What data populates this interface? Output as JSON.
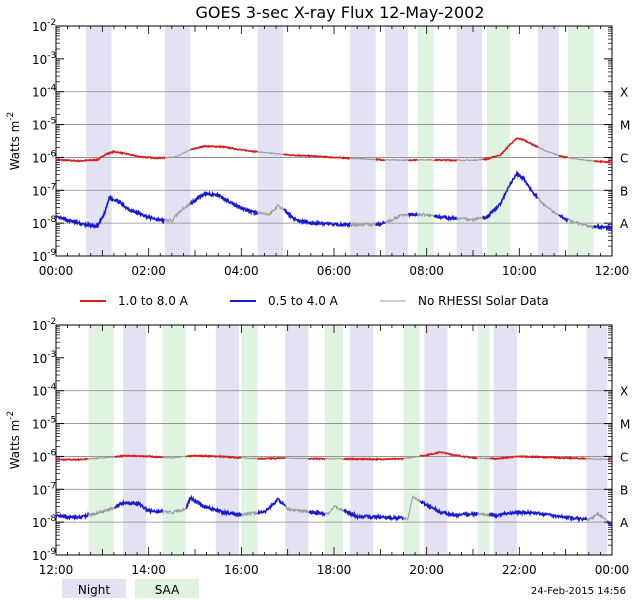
{
  "title": "GOES 3-sec X-ray Flux   12-May-2002",
  "timestamp": "24-Feb-2015 14:56",
  "legend": [
    {
      "label": "1.0 to 8.0 A",
      "color": "#d42020"
    },
    {
      "label": "0.5 to 4.0 A",
      "color": "#1a1acc"
    },
    {
      "label": "No RHESSI Solar Data",
      "color": "#999999"
    }
  ],
  "key": [
    {
      "label": "Night",
      "color": "#e2e2f2"
    },
    {
      "label": "SAA",
      "color": "#e0f2e0"
    }
  ],
  "colors": {
    "night": "#e2e2f2",
    "saa": "#e0f2e0",
    "long": "#d42020",
    "short": "#1a1acc",
    "gap": "#999999"
  },
  "chart_data": [
    {
      "type": "line",
      "title": "GOES 3-sec X-ray Flux   12-May-2002",
      "ylabel": "Watts m",
      "ylabel_sup": "-2",
      "y_scale": "log",
      "ylim_exp": [
        -9,
        -2
      ],
      "y_ticks": [
        {
          "base": "10",
          "exp": "-9"
        },
        {
          "base": "10",
          "exp": "-8"
        },
        {
          "base": "10",
          "exp": "-7"
        },
        {
          "base": "10",
          "exp": "-6"
        },
        {
          "base": "10",
          "exp": "-5"
        },
        {
          "base": "10",
          "exp": "-4"
        },
        {
          "base": "10",
          "exp": "-3"
        },
        {
          "base": "10",
          "exp": "-2"
        }
      ],
      "class_labels": [
        {
          "label": "A",
          "exp": -8
        },
        {
          "label": "B",
          "exp": -7
        },
        {
          "label": "C",
          "exp": -6
        },
        {
          "label": "M",
          "exp": -5
        },
        {
          "label": "X",
          "exp": -4
        }
      ],
      "x_unit": "hours UT",
      "xlim": [
        0,
        12
      ],
      "x_ticks": [
        {
          "label": "00:00",
          "x": 0
        },
        {
          "label": "02:00",
          "x": 2
        },
        {
          "label": "04:00",
          "x": 4
        },
        {
          "label": "06:00",
          "x": 6
        },
        {
          "label": "08:00",
          "x": 8
        },
        {
          "label": "10:00",
          "x": 10
        },
        {
          "label": "12:00",
          "x": 12
        }
      ],
      "night_bands": [
        [
          0.65,
          1.2
        ],
        [
          2.35,
          2.9
        ],
        [
          4.35,
          4.9
        ],
        [
          6.35,
          6.9
        ],
        [
          7.1,
          7.6
        ],
        [
          8.65,
          9.2
        ],
        [
          10.4,
          10.85
        ]
      ],
      "saa_bands": [
        [
          7.8,
          8.15
        ],
        [
          9.3,
          9.8
        ],
        [
          11.05,
          11.6
        ]
      ],
      "series": [
        {
          "name": "1.0 to 8.0 A",
          "role": "long",
          "x": [
            0,
            0.5,
            0.9,
            1.05,
            1.25,
            1.5,
            1.8,
            2.2,
            2.6,
            2.9,
            3.2,
            3.6,
            4.0,
            4.5,
            5.0,
            5.5,
            6.0,
            6.5,
            7.0,
            7.5,
            8.0,
            8.5,
            9.0,
            9.3,
            9.6,
            9.8,
            9.95,
            10.1,
            10.3,
            10.6,
            11.0,
            11.5,
            12.0
          ],
          "y": [
            8.5e-07,
            7.8e-07,
            8.5e-07,
            1.2e-06,
            1.5e-06,
            1.3e-06,
            1.05e-06,
            9.5e-07,
            1.05e-06,
            1.7e-06,
            2.2e-06,
            2.1e-06,
            1.7e-06,
            1.4e-06,
            1.2e-06,
            1.1e-06,
            1e-06,
            9.2e-07,
            8.5e-07,
            8.2e-07,
            8.5e-07,
            8.2e-07,
            8.2e-07,
            9e-07,
            1.2e-06,
            2.5e-06,
            3.8e-06,
            3.4e-06,
            2.4e-06,
            1.5e-06,
            1e-06,
            8e-07,
            7e-07
          ]
        },
        {
          "name": "0.5 to 4.0 A",
          "role": "short",
          "x": [
            0,
            0.3,
            0.6,
            0.9,
            1.05,
            1.15,
            1.3,
            1.6,
            2.0,
            2.3,
            2.5,
            2.7,
            2.85,
            3.0,
            3.2,
            3.5,
            3.8,
            4.2,
            4.6,
            4.8,
            5.0,
            5.2,
            5.5,
            5.8,
            6.0,
            6.5,
            7.0,
            7.5,
            8.0,
            8.5,
            9.0,
            9.3,
            9.6,
            9.8,
            9.95,
            10.1,
            10.3,
            10.6,
            11.0,
            11.5,
            12.0
          ],
          "y": [
            1.5e-08,
            1.2e-08,
            9e-09,
            8e-09,
            2e-08,
            6e-08,
            5e-08,
            2.5e-08,
            1.5e-08,
            1.2e-08,
            1.2e-08,
            2.5e-08,
            3.5e-08,
            5e-08,
            8e-08,
            7e-08,
            4e-08,
            2.2e-08,
            1.8e-08,
            3.5e-08,
            2e-08,
            1.2e-08,
            1e-08,
            1e-08,
            9e-09,
            9e-09,
            9e-09,
            1.8e-08,
            1.8e-08,
            1.4e-08,
            1.3e-08,
            1.5e-08,
            4e-08,
            1.5e-07,
            3.2e-07,
            2.2e-07,
            8e-08,
            3e-08,
            1.3e-08,
            8e-09,
            7e-09
          ]
        }
      ],
      "gaps": [
        [
          2.35,
          2.9
        ],
        [
          4.35,
          4.9
        ],
        [
          6.35,
          6.9
        ],
        [
          7.1,
          7.6
        ],
        [
          7.8,
          8.15
        ],
        [
          8.65,
          9.2
        ],
        [
          10.4,
          10.85
        ],
        [
          11.05,
          11.6
        ]
      ]
    },
    {
      "type": "line",
      "ylabel": "Watts m",
      "ylabel_sup": "-2",
      "y_scale": "log",
      "ylim_exp": [
        -9,
        -2
      ],
      "y_ticks": [
        {
          "base": "10",
          "exp": "-9"
        },
        {
          "base": "10",
          "exp": "-8"
        },
        {
          "base": "10",
          "exp": "-7"
        },
        {
          "base": "10",
          "exp": "-6"
        },
        {
          "base": "10",
          "exp": "-5"
        },
        {
          "base": "10",
          "exp": "-4"
        },
        {
          "base": "10",
          "exp": "-3"
        },
        {
          "base": "10",
          "exp": "-2"
        }
      ],
      "class_labels": [
        {
          "label": "A",
          "exp": -8
        },
        {
          "label": "B",
          "exp": -7
        },
        {
          "label": "C",
          "exp": -6
        },
        {
          "label": "M",
          "exp": -5
        },
        {
          "label": "X",
          "exp": -4
        }
      ],
      "x_unit": "hours UT",
      "xlim": [
        12,
        24
      ],
      "x_ticks": [
        {
          "label": "12:00",
          "x": 12
        },
        {
          "label": "14:00",
          "x": 14
        },
        {
          "label": "16:00",
          "x": 16
        },
        {
          "label": "18:00",
          "x": 18
        },
        {
          "label": "20:00",
          "x": 20
        },
        {
          "label": "22:00",
          "x": 22
        },
        {
          "label": "00:00",
          "x": 24
        }
      ],
      "night_bands": [
        [
          13.45,
          13.95
        ],
        [
          15.45,
          15.95
        ],
        [
          16.95,
          17.45
        ],
        [
          18.35,
          18.85
        ],
        [
          19.95,
          20.45
        ],
        [
          21.45,
          21.95
        ],
        [
          23.45,
          23.9
        ]
      ],
      "saa_bands": [
        [
          12.7,
          13.25
        ],
        [
          14.3,
          14.8
        ],
        [
          16.0,
          16.35
        ],
        [
          17.8,
          18.2
        ],
        [
          19.5,
          19.85
        ],
        [
          21.1,
          21.35
        ]
      ],
      "series": [
        {
          "name": "1.0 to 8.0 A",
          "role": "long",
          "x": [
            12,
            12.5,
            13.0,
            13.5,
            14.0,
            14.5,
            15.0,
            15.5,
            16.0,
            16.5,
            17.0,
            17.5,
            18.0,
            18.5,
            19.0,
            19.5,
            20.0,
            20.3,
            20.6,
            21.0,
            21.5,
            22.0,
            22.5,
            23.0,
            23.5,
            24.0
          ],
          "y": [
            8e-07,
            8e-07,
            9e-07,
            1.05e-06,
            1e-06,
            9e-07,
            1.05e-06,
            1e-06,
            9e-07,
            8.5e-07,
            9e-07,
            8.5e-07,
            8.5e-07,
            8.3e-07,
            8.2e-07,
            8.5e-07,
            1.1e-06,
            1.35e-06,
            1.1e-06,
            9e-07,
            8.5e-07,
            1e-06,
            9.5e-07,
            9e-07,
            8.5e-07,
            8e-07
          ]
        },
        {
          "name": "0.5 to 4.0 A",
          "role": "short",
          "x": [
            12,
            12.5,
            13.0,
            13.5,
            13.8,
            14.0,
            14.5,
            14.8,
            14.9,
            15.2,
            15.6,
            16.0,
            16.5,
            16.8,
            17.0,
            17.5,
            17.9,
            18.0,
            18.5,
            19.0,
            19.6,
            19.7,
            19.9,
            20.3,
            20.6,
            21.0,
            21.5,
            22.0,
            22.5,
            23.0,
            23.5,
            23.7,
            24.0
          ],
          "y": [
            1.5e-08,
            1.4e-08,
            2e-08,
            4e-08,
            3.5e-08,
            2.2e-08,
            2e-08,
            2.5e-08,
            5.5e-08,
            3e-08,
            2e-08,
            1.7e-08,
            2e-08,
            5e-08,
            2.5e-08,
            2e-08,
            1.8e-08,
            3e-08,
            1.5e-08,
            1.4e-08,
            1.3e-08,
            6e-08,
            4e-08,
            2e-08,
            1.6e-08,
            1.8e-08,
            1.6e-08,
            2e-08,
            1.8e-08,
            1.4e-08,
            1.2e-08,
            1.8e-08,
            8e-09
          ]
        }
      ],
      "gaps": [
        [
          12.7,
          13.25
        ],
        [
          14.3,
          14.8
        ],
        [
          16.0,
          16.35
        ],
        [
          16.95,
          17.45
        ],
        [
          17.8,
          18.2
        ],
        [
          19.5,
          19.85
        ],
        [
          21.1,
          21.35
        ],
        [
          23.45,
          23.9
        ]
      ]
    }
  ]
}
